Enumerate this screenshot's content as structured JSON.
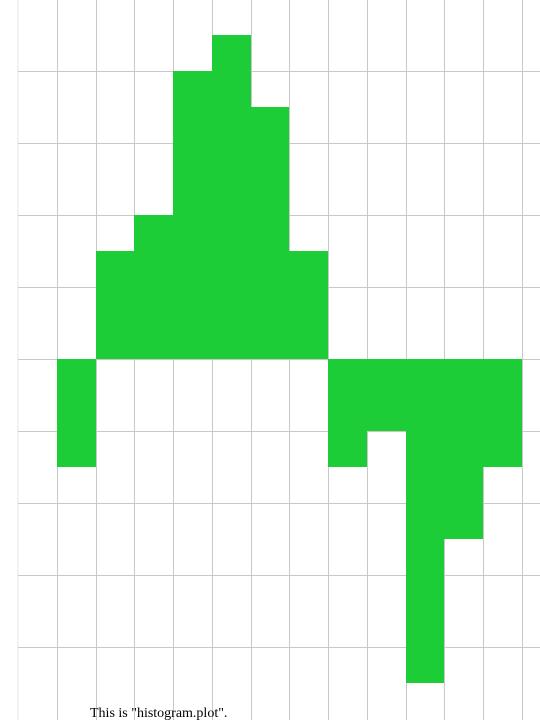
{
  "caption": "This is \"histogram.plot\".",
  "chart_data": {
    "type": "bar",
    "x": [
      -9,
      -8,
      -7,
      -6,
      -5,
      -4,
      -3,
      -2,
      -1,
      0,
      1,
      2,
      3
    ],
    "values": [
      -3,
      3,
      4,
      8,
      9,
      7,
      3,
      -3,
      -2,
      -9,
      -5,
      -3,
      0
    ],
    "xlim": [
      -10,
      3
    ],
    "ylim": [
      -10,
      10
    ],
    "grid": true,
    "bar_color": "#1ccd37"
  },
  "colors": {
    "grid": "#c8c8c8",
    "axis_line": "#e6e6e6",
    "background": "#ffffff"
  }
}
